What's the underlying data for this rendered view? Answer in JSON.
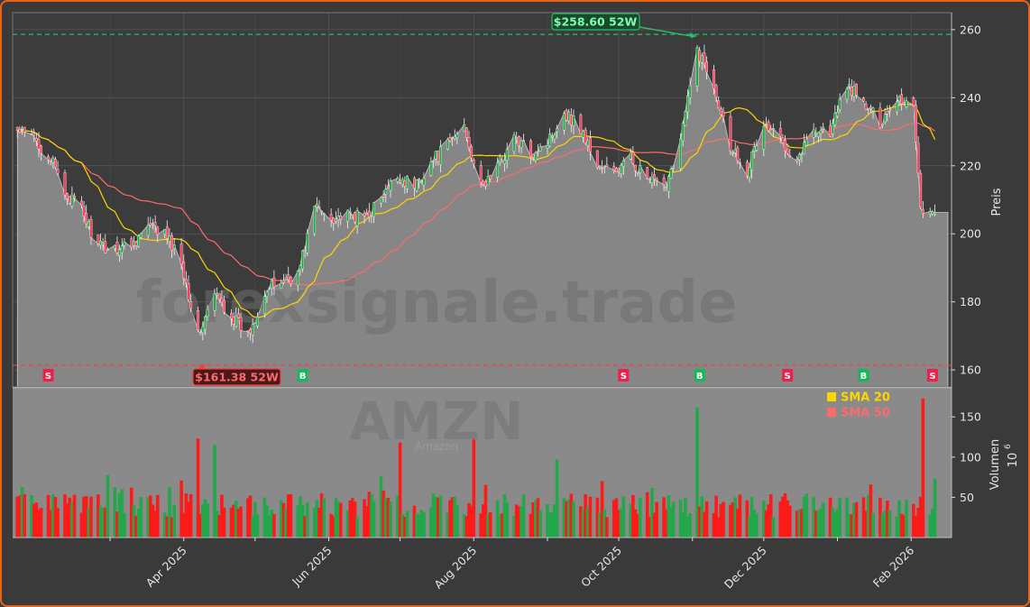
{
  "chart_data": {
    "type": "candlestick",
    "ticker": "AMZN",
    "subtitle": "Amazon",
    "watermark": "forexsignale.trade",
    "ylabel_price": "Preis",
    "ylabel_volume": "Volumen",
    "volume_unit_exponent": "6",
    "price_ylim": [
      155,
      265
    ],
    "volume_ylim": [
      0,
      185
    ],
    "price_ticks": [
      160,
      180,
      200,
      220,
      240,
      260
    ],
    "volume_ticks": [
      50,
      100,
      150
    ],
    "x_tick_labels": [
      {
        "label": "Apr 2025",
        "date": "2025-04-01"
      },
      {
        "label": "Jun 2025",
        "date": "2025-06-01"
      },
      {
        "label": "Aug 2025",
        "date": "2025-08-01"
      },
      {
        "label": "Oct 2025",
        "date": "2025-10-01"
      },
      {
        "label": "Dec 2025",
        "date": "2025-12-01"
      },
      {
        "label": "Feb 2026",
        "date": "2026-02-01"
      }
    ],
    "x_minor_dates": [
      "2025-03-01",
      "2025-05-01",
      "2025-07-01",
      "2025-09-01",
      "2025-11-01",
      "2026-01-01"
    ],
    "date_range": [
      "2025-01-21",
      "2026-02-11"
    ],
    "high_52w": {
      "value": 258.6,
      "label": "$258.60 52W",
      "date": "2025-11-03"
    },
    "low_52w": {
      "value": 161.38,
      "label": "$161.38 52W",
      "date": "2025-04-07"
    },
    "price_anchors": [
      {
        "date": "2025-01-21",
        "close": 230
      },
      {
        "date": "2025-01-28",
        "close": 228
      },
      {
        "date": "2025-02-04",
        "close": 222
      },
      {
        "date": "2025-02-10",
        "close": 212
      },
      {
        "date": "2025-02-17",
        "close": 207
      },
      {
        "date": "2025-02-24",
        "close": 196
      },
      {
        "date": "2025-03-03",
        "close": 196
      },
      {
        "date": "2025-03-10",
        "close": 197
      },
      {
        "date": "2025-03-17",
        "close": 202
      },
      {
        "date": "2025-03-24",
        "close": 200
      },
      {
        "date": "2025-03-31",
        "close": 192
      },
      {
        "date": "2025-04-07",
        "close": 170
      },
      {
        "date": "2025-04-14",
        "close": 182
      },
      {
        "date": "2025-04-21",
        "close": 176
      },
      {
        "date": "2025-04-28",
        "close": 170
      },
      {
        "date": "2025-05-05",
        "close": 183
      },
      {
        "date": "2025-05-12",
        "close": 186
      },
      {
        "date": "2025-05-19",
        "close": 188
      },
      {
        "date": "2025-05-26",
        "close": 208
      },
      {
        "date": "2025-06-02",
        "close": 205
      },
      {
        "date": "2025-06-09",
        "close": 205
      },
      {
        "date": "2025-06-16",
        "close": 205
      },
      {
        "date": "2025-06-23",
        "close": 210
      },
      {
        "date": "2025-06-30",
        "close": 217
      },
      {
        "date": "2025-07-07",
        "close": 214
      },
      {
        "date": "2025-07-14",
        "close": 221
      },
      {
        "date": "2025-07-21",
        "close": 226
      },
      {
        "date": "2025-07-28",
        "close": 232
      },
      {
        "date": "2025-08-04",
        "close": 213
      },
      {
        "date": "2025-08-11",
        "close": 220
      },
      {
        "date": "2025-08-18",
        "close": 228
      },
      {
        "date": "2025-08-25",
        "close": 224
      },
      {
        "date": "2025-09-01",
        "close": 227
      },
      {
        "date": "2025-09-08",
        "close": 236
      },
      {
        "date": "2025-09-15",
        "close": 231
      },
      {
        "date": "2025-09-22",
        "close": 220
      },
      {
        "date": "2025-09-29",
        "close": 218
      },
      {
        "date": "2025-10-06",
        "close": 222
      },
      {
        "date": "2025-10-13",
        "close": 216
      },
      {
        "date": "2025-10-20",
        "close": 213
      },
      {
        "date": "2025-10-27",
        "close": 228
      },
      {
        "date": "2025-11-03",
        "close": 254
      },
      {
        "date": "2025-11-10",
        "close": 244
      },
      {
        "date": "2025-11-17",
        "close": 226
      },
      {
        "date": "2025-11-24",
        "close": 219
      },
      {
        "date": "2025-12-01",
        "close": 232
      },
      {
        "date": "2025-12-08",
        "close": 228
      },
      {
        "date": "2025-12-15",
        "close": 222
      },
      {
        "date": "2025-12-22",
        "close": 231
      },
      {
        "date": "2025-12-29",
        "close": 230
      },
      {
        "date": "2026-01-05",
        "close": 244
      },
      {
        "date": "2026-01-12",
        "close": 238
      },
      {
        "date": "2026-01-19",
        "close": 233
      },
      {
        "date": "2026-01-26",
        "close": 240
      },
      {
        "date": "2026-02-02",
        "close": 238
      },
      {
        "date": "2026-02-05",
        "close": 208
      },
      {
        "date": "2026-02-11",
        "close": 205
      }
    ],
    "volume_spikes": [
      {
        "date": "2025-04-07",
        "value": 123
      },
      {
        "date": "2025-04-14",
        "value": 115
      },
      {
        "date": "2025-07-01",
        "value": 118
      },
      {
        "date": "2025-08-01",
        "value": 122
      },
      {
        "date": "2025-09-05",
        "value": 97
      },
      {
        "date": "2025-11-03",
        "value": 162
      },
      {
        "date": "2026-02-06",
        "value": 173
      }
    ],
    "signals": [
      {
        "type": "S",
        "date": "2025-02-03"
      },
      {
        "type": "B",
        "date": "2025-05-21"
      },
      {
        "type": "S",
        "date": "2025-10-03"
      },
      {
        "type": "B",
        "date": "2025-11-04"
      },
      {
        "type": "S",
        "date": "2025-12-11"
      },
      {
        "type": "B",
        "date": "2026-01-12"
      },
      {
        "type": "S",
        "date": "2026-02-10"
      }
    ],
    "series": [
      {
        "name": "SMA 20",
        "color": "#ffd400"
      },
      {
        "name": "SMA 50",
        "color": "#ff6b6b"
      }
    ],
    "colors": {
      "up": "#22a84a",
      "down": "#ff1a1a",
      "area": "#8a8a8a",
      "high_line": "#26c06b",
      "low_line": "#ff3b3b",
      "buy": "#16b857",
      "sell": "#f01e4a"
    },
    "legend_position": "top-right",
    "grid": true
  }
}
